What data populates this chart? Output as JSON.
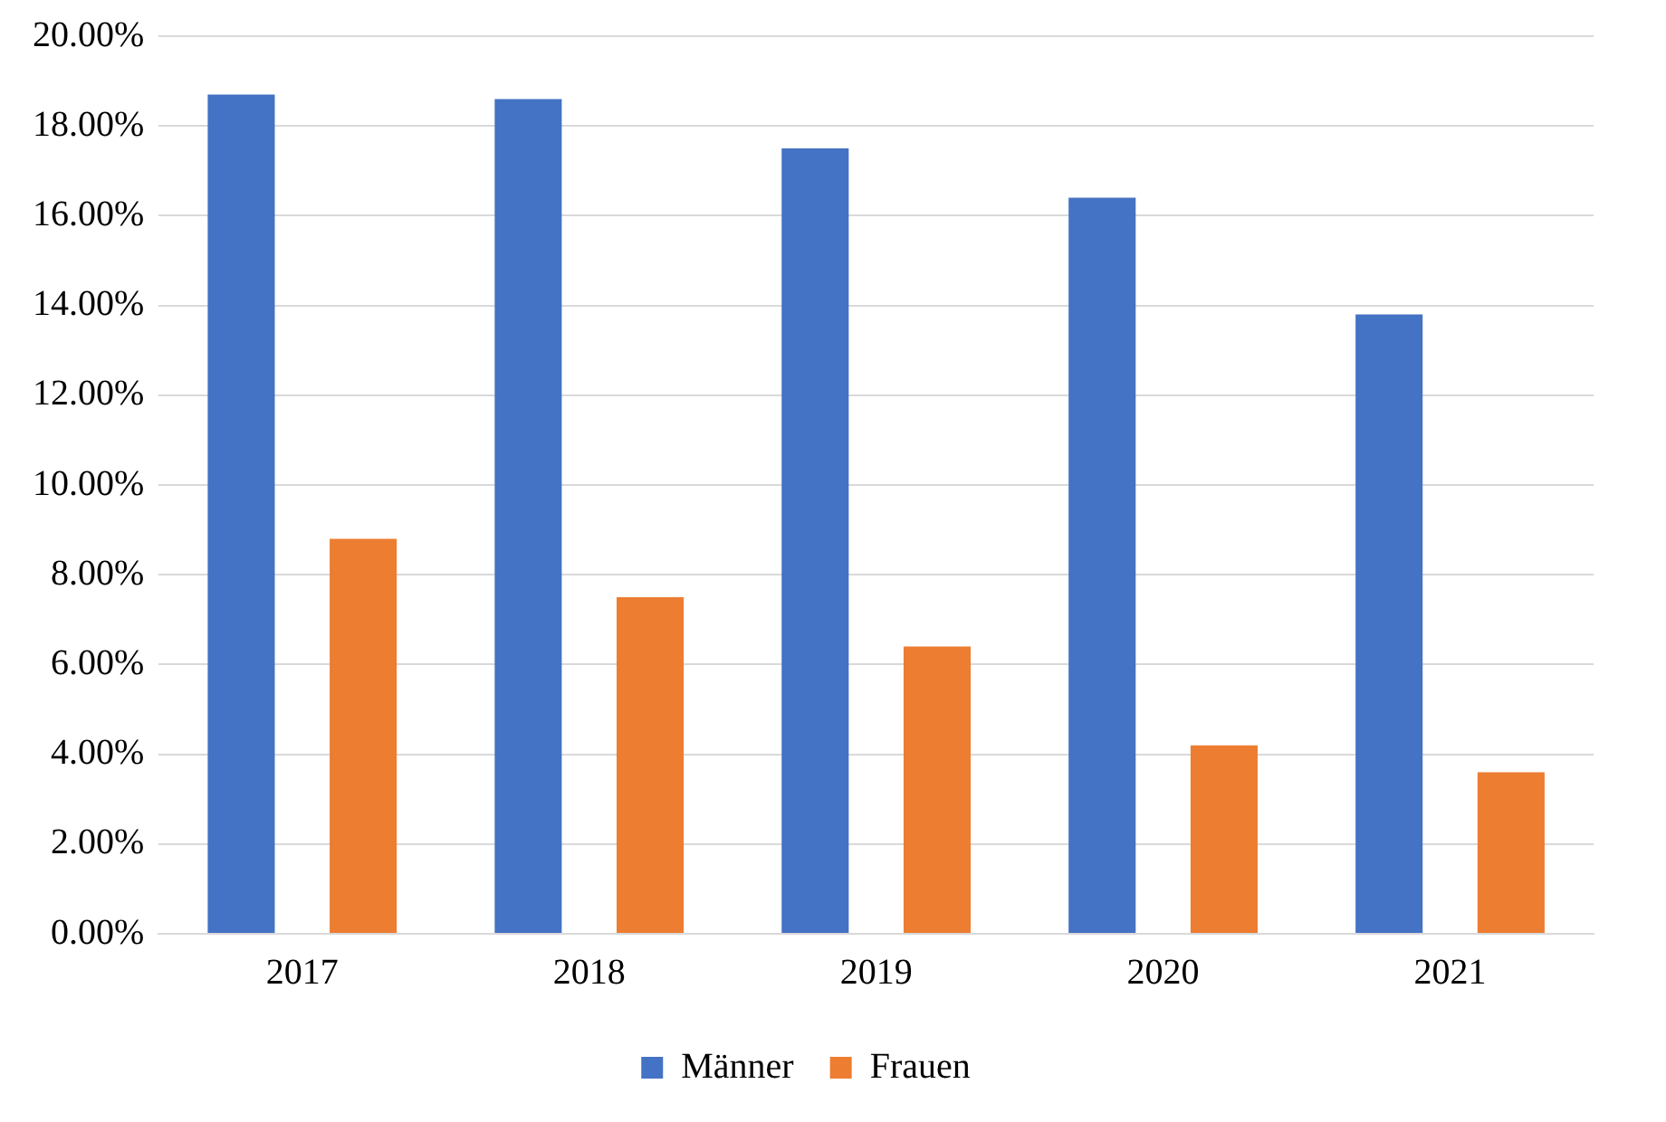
{
  "chart_data": {
    "type": "bar",
    "categories": [
      "2017",
      "2018",
      "2019",
      "2020",
      "2021"
    ],
    "series": [
      {
        "name": "Männer",
        "color": "#4472c4",
        "values": [
          18.7,
          18.6,
          17.5,
          16.4,
          13.8
        ]
      },
      {
        "name": "Frauen",
        "color": "#ed7d31",
        "values": [
          8.8,
          7.5,
          6.4,
          4.2,
          3.6
        ]
      }
    ],
    "ylim": [
      0,
      20
    ],
    "yticks": [
      {
        "value": 0,
        "label": "0.00%"
      },
      {
        "value": 2,
        "label": "2.00%"
      },
      {
        "value": 4,
        "label": "4.00%"
      },
      {
        "value": 6,
        "label": "6.00%"
      },
      {
        "value": 8,
        "label": "8.00%"
      },
      {
        "value": 10,
        "label": "10.00%"
      },
      {
        "value": 12,
        "label": "12.00%"
      },
      {
        "value": 14,
        "label": "14.00%"
      },
      {
        "value": 16,
        "label": "16.00%"
      },
      {
        "value": 18,
        "label": "18.00%"
      },
      {
        "value": 20,
        "label": "20.00%"
      }
    ],
    "grid": "y",
    "legend": "bottom"
  }
}
